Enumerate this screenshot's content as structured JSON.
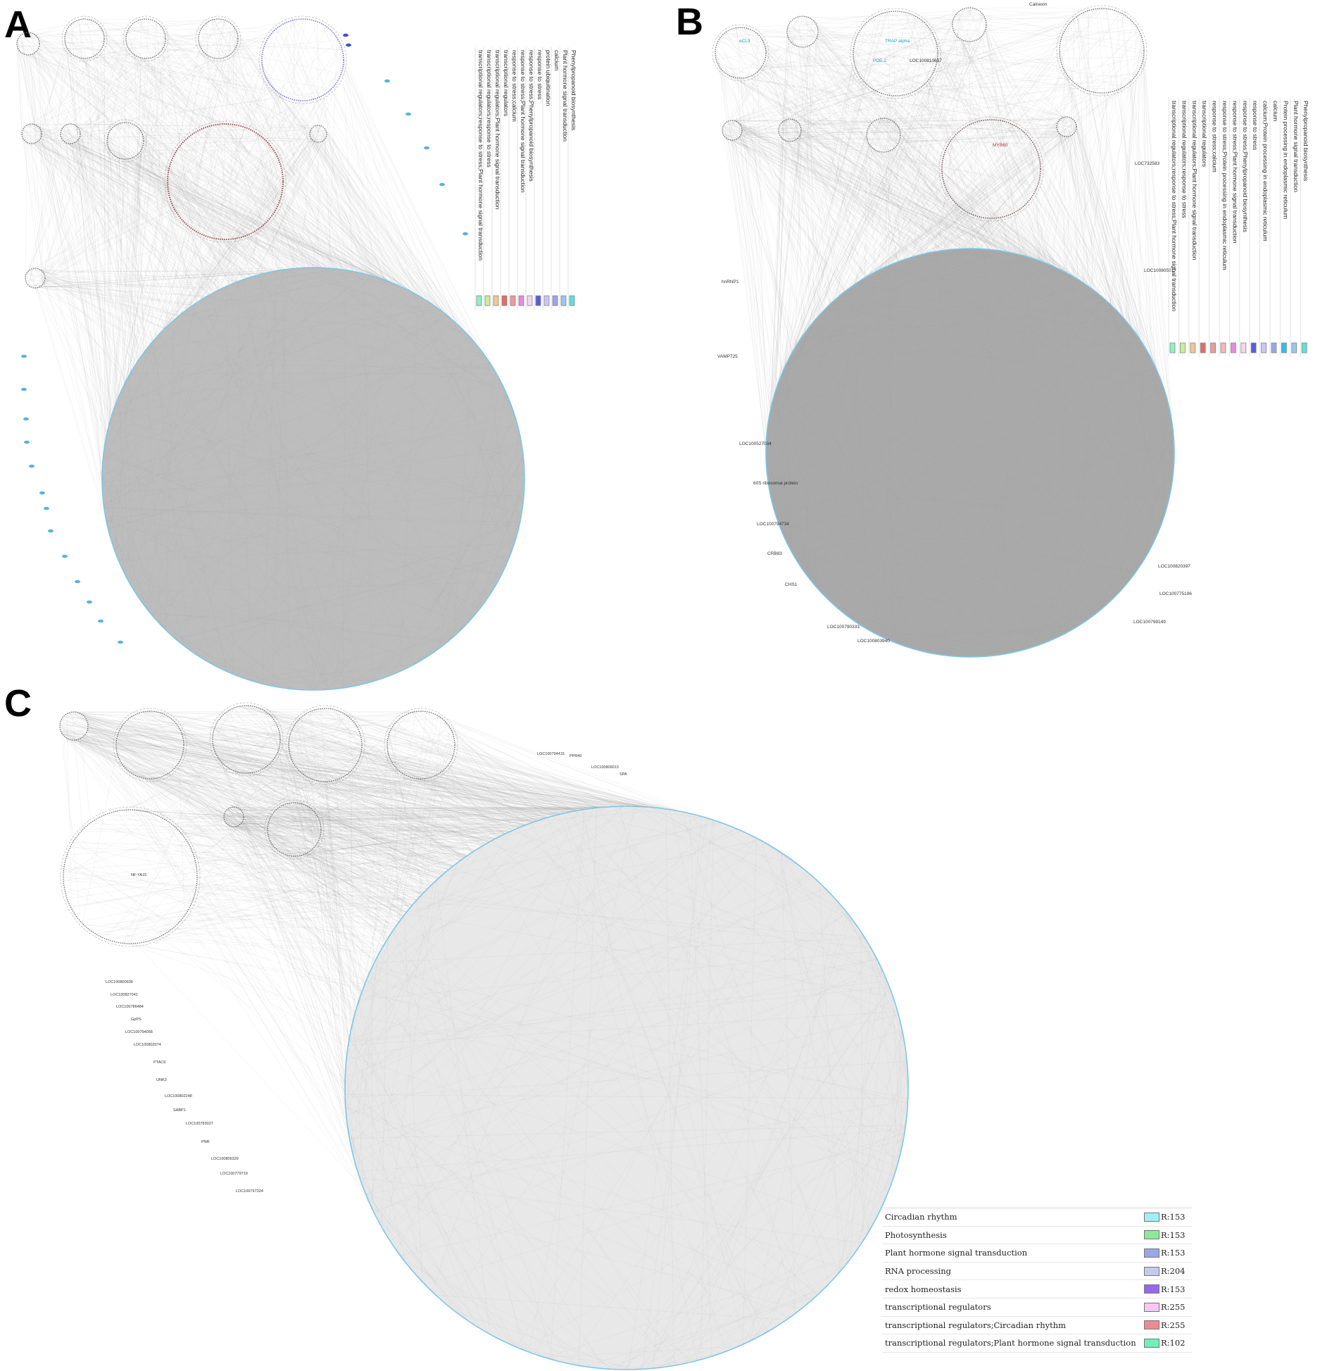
{
  "panels": [
    {
      "letter": "A",
      "legend": [
        {
          "label": "Phenylpropanoid biosynthesis",
          "color": "#5fe0d8"
        },
        {
          "label": "Plant hormone signal transduction",
          "color": "#9cc6ea"
        },
        {
          "label": "calcium",
          "color": "#9aa6e8"
        },
        {
          "label": "protein ubiquitination",
          "color": "#c8c8f0"
        },
        {
          "label": "response to stress",
          "color": "#5a5ae0"
        },
        {
          "label": "response to stress;Phenylpropanoid biosynthesis",
          "color": "#f3d6f0"
        },
        {
          "label": "response to stress;Plant hormone signal transduction",
          "color": "#e58be0"
        },
        {
          "label": "response to stress;calcium",
          "color": "#ec9a9a"
        },
        {
          "label": "transcriptional regulators",
          "color": "#e36a6a"
        },
        {
          "label": "transcriptional regulators;Plant hormone signal transduction",
          "color": "#f0c796"
        },
        {
          "label": "transcriptional regulators;response to stress",
          "color": "#c8ee98"
        },
        {
          "label": "transcriptional regulators;response to stress;Plant hormone signal transduction",
          "color": "#8ff0c4"
        }
      ],
      "node_labels": []
    },
    {
      "letter": "B",
      "legend": [
        {
          "label": "Phenylpropanoid biosynthesis",
          "color": "#5fe0d8"
        },
        {
          "label": "Plant hormone signal transduction",
          "color": "#9cc6ea"
        },
        {
          "label": "Protein processing in endoplasmic reticulum",
          "color": "#2ec0e8"
        },
        {
          "label": "calcium",
          "color": "#9aa6e8"
        },
        {
          "label": "calcium;Protein processing in endoplasmic reticulum",
          "color": "#c8c8f0"
        },
        {
          "label": "response to stress",
          "color": "#5a5ae0"
        },
        {
          "label": "response to stress;Phenylpropanoid biosynthesis",
          "color": "#f3d6f0"
        },
        {
          "label": "response to stress;Plant hormone signal transduction",
          "color": "#e58be0"
        },
        {
          "label": "response to stress;Protein processing in endoplasmic reticulum",
          "color": "#f0b8c0"
        },
        {
          "label": "response to stress;calcium",
          "color": "#ec9a9a"
        },
        {
          "label": "transcriptional regulators",
          "color": "#e36a6a"
        },
        {
          "label": "transcriptional regulators;Plant hormone signal transduction",
          "color": "#f0c796"
        },
        {
          "label": "transcriptional regulators;response to stress",
          "color": "#c8ee98"
        },
        {
          "label": "transcriptional regulators;response to stress;Plant hormone signal transduction",
          "color": "#8ff0c4"
        }
      ],
      "node_labels": [
        "eCL3",
        "TRAP alpha",
        "PDE-2",
        "LOC100810637",
        "Calnexin",
        "MYB60",
        "LOC732583",
        "LOC100805017",
        "hnRNP1",
        "VAMP725",
        "LOC100527034",
        "60S ribosomal protein",
        "LOC100794734",
        "CRB83",
        "CHS1",
        "LOC100820397",
        "LOC100775196",
        "LOC100799149",
        "LOC100790333",
        "LOC100803940"
      ]
    },
    {
      "letter": "C",
      "legend": [
        {
          "label": "Circadian rhythm",
          "value": "R:153",
          "color": "#9ef0f8"
        },
        {
          "label": "Photosynthesis",
          "value": "R:153",
          "color": "#8ee898"
        },
        {
          "label": "Plant hormone signal transduction",
          "value": "R:153",
          "color": "#9aa6e8"
        },
        {
          "label": "RNA processing",
          "value": "R:204",
          "color": "#c8c8f0"
        },
        {
          "label": "redox homeostasis",
          "value": "R:153",
          "color": "#9868e8"
        },
        {
          "label": "transcriptional regulators",
          "value": "R:255",
          "color": "#f6c8f4"
        },
        {
          "label": "transcriptional regulators;Circadian rhythm",
          "value": "R:255",
          "color": "#ec8a94"
        },
        {
          "label": "transcriptional regulators;Plant hormone signal transduction",
          "value": "R:102",
          "color": "#6ef0b8"
        }
      ],
      "node_labels": [
        "LOC100794415",
        "PPR40",
        "LOC100806013",
        "SPA",
        "NF-YA15",
        "LOC100800936",
        "LOC100827041",
        "LOC100786484",
        "GpPS",
        "LOC100794058",
        "LOC100802074",
        "PTAC9",
        "UNK3",
        "LOC100802248",
        "SABP1",
        "LOC100783027",
        "PNR",
        "LOC100806329",
        "LOC100779719",
        "LOC100797324"
      ]
    }
  ]
}
